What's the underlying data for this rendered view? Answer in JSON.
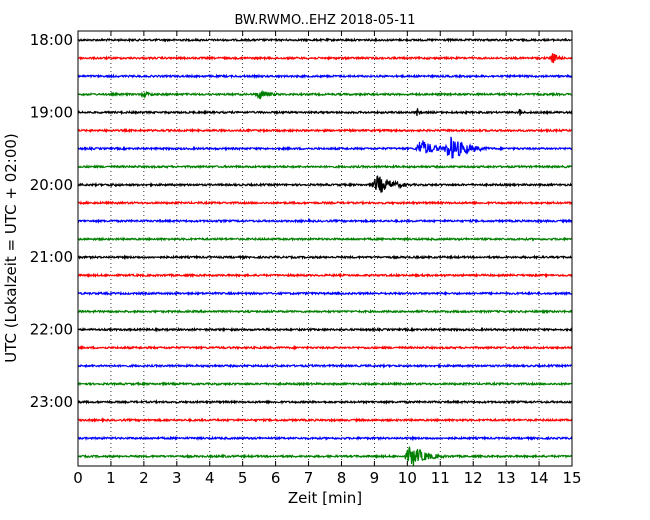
{
  "chart_data": {
    "type": "line",
    "chart_style": "helicorder",
    "title": "BW.RWMO..EHZ 2018-05-11",
    "xlabel": "Zeit  [min]",
    "ylabel": "UTC (Lokalzeit = UTC + 02:00)",
    "xlim": [
      0,
      15
    ],
    "x_ticks": [
      "0",
      "1",
      "2",
      "3",
      "4",
      "5",
      "6",
      "7",
      "8",
      "9",
      "10",
      "11",
      "12",
      "13",
      "14",
      "15"
    ],
    "y_tick_labels": [
      "18:00",
      "19:00",
      "20:00",
      "21:00",
      "22:00",
      "23:00"
    ],
    "grid": "vertical dotted",
    "line_interval_minutes": 15,
    "colors": [
      "#000000",
      "#ff0000",
      "#0000ff",
      "#008000"
    ],
    "traces": [
      {
        "start": "18:00",
        "events": [
          {
            "x": 1.0,
            "amp": 0.6,
            "dur": 0.3
          }
        ]
      },
      {
        "start": "18:15",
        "events": [
          {
            "x": 14.4,
            "amp": 6,
            "dur": 0.6
          }
        ]
      },
      {
        "start": "18:30",
        "events": [
          {
            "x": 10.0,
            "amp": 0.5,
            "dur": 0.3
          }
        ]
      },
      {
        "start": "18:45",
        "events": [
          {
            "x": 2.0,
            "amp": 3,
            "dur": 0.9
          },
          {
            "x": 5.5,
            "amp": 5,
            "dur": 1.0
          }
        ]
      },
      {
        "start": "19:00",
        "events": [
          {
            "x": 10.3,
            "amp": 6,
            "dur": 0.15
          },
          {
            "x": 13.4,
            "amp": 6,
            "dur": 0.2
          }
        ]
      },
      {
        "start": "19:15",
        "events": []
      },
      {
        "start": "19:30",
        "events": [
          {
            "x": 10.4,
            "amp": 10,
            "dur": 1.2
          },
          {
            "x": 11.3,
            "amp": 13,
            "dur": 1.5
          }
        ]
      },
      {
        "start": "19:45",
        "events": [
          {
            "x": 14.9,
            "amp": 2,
            "dur": 0.2
          }
        ]
      },
      {
        "start": "20:00",
        "events": [
          {
            "x": 1.0,
            "amp": 1.5,
            "dur": 2.0
          },
          {
            "x": 9.1,
            "amp": 10,
            "dur": 1.4
          }
        ]
      },
      {
        "start": "20:15",
        "events": []
      },
      {
        "start": "20:30",
        "events": [
          {
            "x": 7.0,
            "amp": 1.2,
            "dur": 0.3
          }
        ]
      },
      {
        "start": "20:45",
        "events": [
          {
            "x": 10.0,
            "amp": 1.2,
            "dur": 0.3
          }
        ]
      },
      {
        "start": "21:00",
        "events": []
      },
      {
        "start": "21:15",
        "events": []
      },
      {
        "start": "21:30",
        "events": [
          {
            "x": 6.8,
            "amp": 1.5,
            "dur": 0.4
          }
        ]
      },
      {
        "start": "21:45",
        "events": []
      },
      {
        "start": "22:00",
        "events": []
      },
      {
        "start": "22:15",
        "events": []
      },
      {
        "start": "22:30",
        "events": []
      },
      {
        "start": "22:45",
        "events": []
      },
      {
        "start": "23:00",
        "events": []
      },
      {
        "start": "23:15",
        "events": []
      },
      {
        "start": "23:30",
        "events": [
          {
            "x": 5.4,
            "amp": 1.5,
            "dur": 0.3
          }
        ]
      },
      {
        "start": "23:45",
        "events": [
          {
            "x": 4.4,
            "amp": 2,
            "dur": 0.4
          },
          {
            "x": 10.1,
            "amp": 12,
            "dur": 1.3
          }
        ]
      }
    ]
  }
}
